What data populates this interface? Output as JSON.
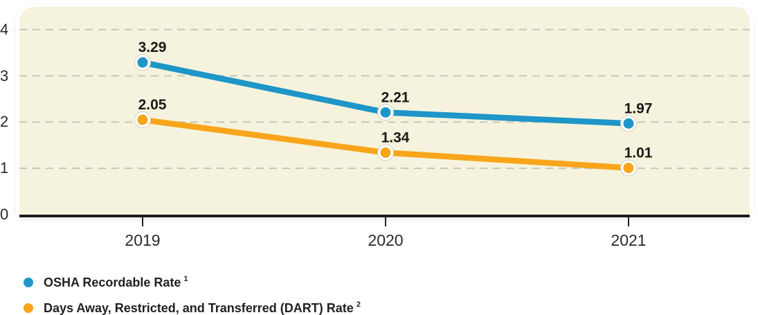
{
  "chart_data": {
    "type": "line",
    "categories": [
      "2019",
      "2020",
      "2021"
    ],
    "series": [
      {
        "name": "OSHA Recordable Rate",
        "footnote": "1",
        "color": "#1e96c8",
        "values": [
          3.29,
          2.21,
          1.97
        ],
        "point_labels": [
          "3.29",
          "2.21",
          "1.97"
        ]
      },
      {
        "name": "Days Away, Restricted, and Transferred (DART) Rate",
        "footnote": "2",
        "color": "#f9a51c",
        "values": [
          2.05,
          1.34,
          1.01
        ],
        "point_labels": [
          "2.05",
          "1.34",
          "1.01"
        ]
      }
    ],
    "title": "",
    "xlabel": "",
    "ylabel": "",
    "ylim": [
      0,
      4.49
    ],
    "yticks": [
      0,
      1,
      2,
      3,
      4
    ],
    "ytick_labels": [
      "0",
      "1",
      "2",
      "3",
      "4"
    ],
    "grid": true,
    "gridline_style": "dashed",
    "legend_position": "bottom-left",
    "colors": {
      "plot_background": "#f5f3dd",
      "gridline": "#c6c5bd",
      "axis": "#1e1c1c",
      "text": "#231f20",
      "marker_ring": "#ffffff",
      "marker_ring_edge": "#d2d0c3"
    }
  }
}
